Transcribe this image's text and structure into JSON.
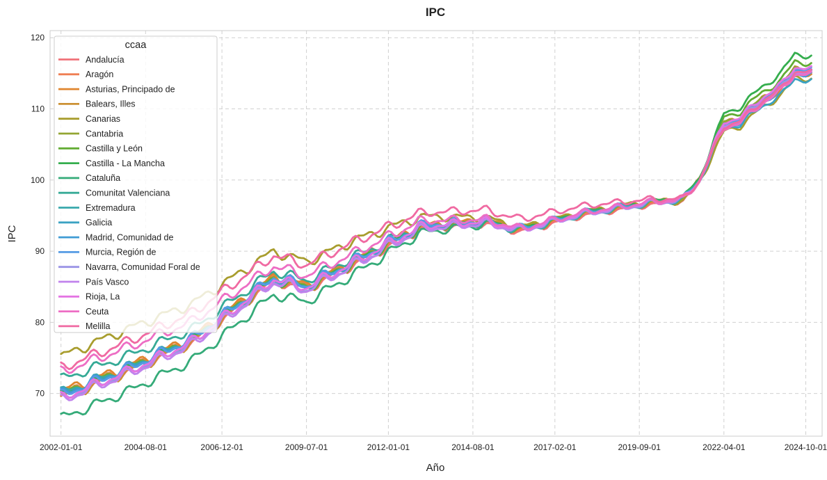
{
  "chart_data": {
    "type": "line",
    "title": "IPC",
    "xlabel": "Año",
    "ylabel": "IPC",
    "x_tick_labels": [
      "2002-01-01",
      "2004-08-01",
      "2006-12-01",
      "2009-07-01",
      "2012-01-01",
      "2014-08-01",
      "2017-02-01",
      "2019-09-01",
      "2022-04-01",
      "2024-10-01"
    ],
    "y_ticks": [
      70,
      80,
      90,
      100,
      110,
      120
    ],
    "xlim": [
      "2001-09-01",
      "2025-04-01"
    ],
    "ylim": [
      64,
      121
    ],
    "grid": true,
    "legend": {
      "title": "ccaa",
      "position": "upper-left"
    },
    "anchor_dates": [
      "2002-01-01",
      "2004-01-01",
      "2006-01-01",
      "2008-07-01",
      "2009-07-01",
      "2011-01-01",
      "2013-01-01",
      "2015-01-01",
      "2016-01-01",
      "2018-01-01",
      "2020-01-01",
      "2021-01-01",
      "2021-07-01",
      "2022-04-01",
      "2022-10-01",
      "2023-06-01",
      "2024-01-01",
      "2024-06-01",
      "2024-12-01"
    ],
    "series": [
      {
        "name": "Andalucía",
        "color": "#f07178",
        "values": [
          69.6,
          73.1,
          77.2,
          85.9,
          84.7,
          88.3,
          93.2,
          93.9,
          92.8,
          95.1,
          96.6,
          97.1,
          99.8,
          107.8,
          108.3,
          111.1,
          112.8,
          115.2,
          115.1
        ]
      },
      {
        "name": "Aragón",
        "color": "#ef7d52",
        "values": [
          69.8,
          73.3,
          77.4,
          86.1,
          84.9,
          88.5,
          93.4,
          94.1,
          93.0,
          95.3,
          96.8,
          97.3,
          100.0,
          108.0,
          108.6,
          111.4,
          113.1,
          115.5,
          115.3
        ]
      },
      {
        "name": "Asturias, Principado de",
        "color": "#e0852e",
        "values": [
          70.3,
          73.7,
          77.8,
          86.4,
          85.2,
          88.8,
          93.6,
          94.3,
          93.1,
          95.4,
          96.8,
          97.3,
          99.9,
          107.8,
          108.3,
          111.1,
          112.8,
          115.2,
          115.0
        ]
      },
      {
        "name": "Balears, Illes",
        "color": "#cc9133",
        "values": [
          69.4,
          73.0,
          77.2,
          86.0,
          84.8,
          88.5,
          93.5,
          94.3,
          93.2,
          95.5,
          96.9,
          97.4,
          100.0,
          108.0,
          108.6,
          111.4,
          113.2,
          115.7,
          115.5
        ]
      },
      {
        "name": "Canarias",
        "color": "#a89d2e",
        "values": [
          75.2,
          79.0,
          82.6,
          90.0,
          88.5,
          91.6,
          94.9,
          94.7,
          93.3,
          95.6,
          97.1,
          97.0,
          99.7,
          106.8,
          107.6,
          110.2,
          111.9,
          114.4,
          114.3
        ]
      },
      {
        "name": "Cantabria",
        "color": "#93a532",
        "values": [
          70.0,
          73.5,
          77.6,
          86.2,
          85.0,
          88.6,
          93.4,
          94.1,
          93.0,
          95.3,
          96.8,
          97.3,
          100.0,
          108.1,
          108.7,
          111.5,
          113.2,
          115.7,
          115.5
        ]
      },
      {
        "name": "Castilla y León",
        "color": "#62ac33",
        "values": [
          69.9,
          73.4,
          77.6,
          86.1,
          84.9,
          88.5,
          93.4,
          94.1,
          93.0,
          95.4,
          96.9,
          97.4,
          100.1,
          108.8,
          109.6,
          112.3,
          114.0,
          116.7,
          116.4
        ]
      },
      {
        "name": "Castilla - La Mancha",
        "color": "#35ae4e",
        "values": [
          69.6,
          73.2,
          77.4,
          86.0,
          84.9,
          88.6,
          93.5,
          94.2,
          93.1,
          95.5,
          97.0,
          97.5,
          100.2,
          109.3,
          110.3,
          113.1,
          115.0,
          117.8,
          117.4
        ]
      },
      {
        "name": "Cataluña",
        "color": "#35ab79",
        "values": [
          66.5,
          70.2,
          74.6,
          83.9,
          82.9,
          86.9,
          92.6,
          93.8,
          93.0,
          95.5,
          96.9,
          97.4,
          100.0,
          107.8,
          108.4,
          111.2,
          113.0,
          115.6,
          115.4
        ]
      },
      {
        "name": "Comunitat Valenciana",
        "color": "#36aa96",
        "values": [
          72.0,
          75.2,
          79.0,
          87.2,
          85.9,
          89.3,
          93.7,
          94.2,
          93.0,
          95.3,
          96.8,
          97.3,
          99.9,
          107.9,
          108.5,
          111.2,
          112.9,
          115.4,
          115.2
        ]
      },
      {
        "name": "Extremadura",
        "color": "#38a8ac",
        "values": [
          70.1,
          73.6,
          77.8,
          86.3,
          85.1,
          88.7,
          93.4,
          94.0,
          92.9,
          95.2,
          96.7,
          97.2,
          99.9,
          107.9,
          108.5,
          111.3,
          113.0,
          115.5,
          115.3
        ]
      },
      {
        "name": "Galicia",
        "color": "#3ba2c2",
        "values": [
          69.8,
          73.4,
          77.6,
          86.2,
          85.0,
          88.6,
          93.5,
          94.2,
          93.1,
          95.4,
          96.8,
          97.2,
          99.8,
          107.4,
          107.8,
          110.4,
          111.9,
          114.3,
          113.9
        ]
      },
      {
        "name": "Madrid, Comunidad de",
        "color": "#3f9bd4",
        "values": [
          69.9,
          73.5,
          77.7,
          86.3,
          85.1,
          88.7,
          93.6,
          94.3,
          93.2,
          95.4,
          96.8,
          97.3,
          99.9,
          107.6,
          108.1,
          110.9,
          112.6,
          115.0,
          114.8
        ]
      },
      {
        "name": "Murcia, Región de",
        "color": "#559be4",
        "values": [
          69.7,
          73.4,
          77.7,
          86.4,
          85.2,
          88.8,
          93.7,
          94.4,
          93.2,
          95.5,
          96.9,
          97.4,
          100.0,
          108.1,
          108.7,
          111.5,
          113.2,
          115.7,
          115.5
        ]
      },
      {
        "name": "Navarra, Comunidad Foral de",
        "color": "#9a93e6",
        "values": [
          69.3,
          72.9,
          77.1,
          85.8,
          84.6,
          88.2,
          93.2,
          93.9,
          92.9,
          95.2,
          96.7,
          97.2,
          99.9,
          107.8,
          108.4,
          111.2,
          112.9,
          115.4,
          115.2
        ]
      },
      {
        "name": "País Vasco",
        "color": "#c083ec",
        "values": [
          69.0,
          72.6,
          76.8,
          85.6,
          84.5,
          88.1,
          93.1,
          93.9,
          92.9,
          95.3,
          96.8,
          97.3,
          99.9,
          107.7,
          108.2,
          111.0,
          112.7,
          115.2,
          115.0
        ]
      },
      {
        "name": "Rioja, La",
        "color": "#e474e3",
        "values": [
          69.4,
          73.0,
          77.3,
          86.1,
          84.9,
          88.6,
          93.5,
          94.2,
          93.1,
          95.4,
          96.9,
          97.4,
          100.0,
          108.2,
          108.8,
          111.6,
          113.4,
          115.9,
          115.6
        ]
      },
      {
        "name": "Ceuta",
        "color": "#ed6ec4",
        "values": [
          73.0,
          76.4,
          80.1,
          87.9,
          86.6,
          89.8,
          94.3,
          94.5,
          93.2,
          95.5,
          96.9,
          97.2,
          99.8,
          107.4,
          108.0,
          110.8,
          112.5,
          114.9,
          114.8
        ]
      },
      {
        "name": "Melilla",
        "color": "#f06aa2",
        "values": [
          73.6,
          77.2,
          81.3,
          89.4,
          88.1,
          91.4,
          95.4,
          95.8,
          94.5,
          96.4,
          97.3,
          97.4,
          99.9,
          107.6,
          108.3,
          111.1,
          112.8,
          115.3,
          115.1
        ]
      }
    ]
  }
}
